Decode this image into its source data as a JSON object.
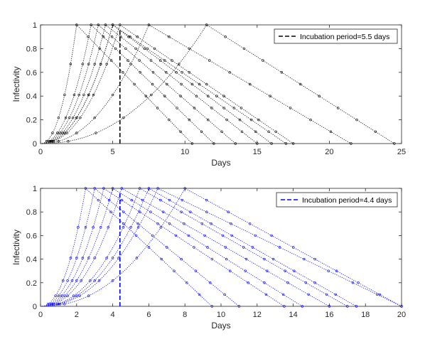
{
  "chart_data": [
    {
      "type": "line",
      "xlabel": "Days",
      "ylabel": "Infectivity",
      "xlim": [
        0,
        25
      ],
      "ylim": [
        0,
        1
      ],
      "xticks": [
        0,
        5,
        10,
        15,
        20,
        25
      ],
      "yticks": [
        0,
        0.2,
        0.4,
        0.6,
        0.8,
        1
      ],
      "grid": false,
      "legend_position": "top-right",
      "series_color": "#000000",
      "incubation_line": {
        "x": 5.5,
        "label": "Incubation period=5.5 days",
        "color": "#000000"
      },
      "series": [
        {
          "peak_day": 2.5,
          "end_day": 10.5
        },
        {
          "peak_day": 3.5,
          "end_day": 12.0
        },
        {
          "peak_day": 4.0,
          "end_day": 13.5
        },
        {
          "peak_day": 4.5,
          "end_day": 15.0
        },
        {
          "peak_day": 5.0,
          "end_day": 16.0
        },
        {
          "peak_day": 5.0,
          "end_day": 17.0
        },
        {
          "peak_day": 5.5,
          "end_day": 17.5
        },
        {
          "peak_day": 7.5,
          "end_day": 21.5
        },
        {
          "peak_day": 11.5,
          "end_day": 24.5
        }
      ]
    },
    {
      "type": "line",
      "xlabel": "Days",
      "ylabel": "Infectivity",
      "xlim": [
        0,
        20
      ],
      "ylim": [
        0,
        1
      ],
      "xticks": [
        0,
        2,
        4,
        6,
        8,
        10,
        12,
        14,
        16,
        18,
        20
      ],
      "yticks": [
        0,
        0.2,
        0.4,
        0.6,
        0.8,
        1
      ],
      "grid": false,
      "legend_position": "top-right",
      "series_color": "#0000ff",
      "incubation_line": {
        "x": 4.4,
        "label": "Incubation period=4.4 days",
        "color": "#0000ff"
      },
      "series": [
        {
          "peak_day": 2.5,
          "end_day": 9.5
        },
        {
          "peak_day": 3.0,
          "end_day": 11.0
        },
        {
          "peak_day": 3.5,
          "end_day": 13.5
        },
        {
          "peak_day": 4.0,
          "end_day": 14.5
        },
        {
          "peak_day": 4.5,
          "end_day": 16.0
        },
        {
          "peak_day": 5.5,
          "end_day": 17.0
        },
        {
          "peak_day": 6.0,
          "end_day": 17.5
        },
        {
          "peak_day": 6.5,
          "end_day": 20.0
        },
        {
          "peak_day": 8.0,
          "end_day": 20.0
        }
      ]
    }
  ]
}
